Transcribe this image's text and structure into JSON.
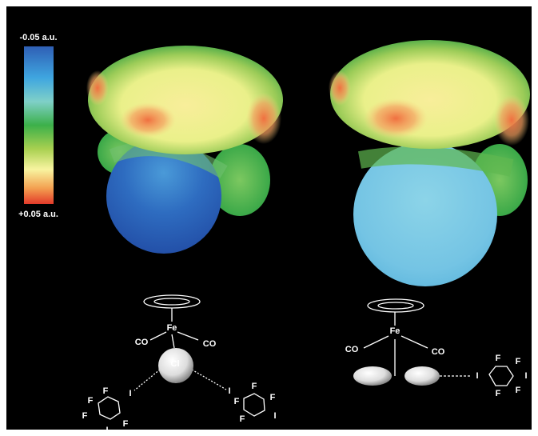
{
  "colorbar": {
    "top_label": "-0.05 a.u.",
    "bottom_label": "+0.05 a.u."
  },
  "left_complex": {
    "metal": "Fe",
    "carbonyls": [
      "CO",
      "CO"
    ],
    "halide": "Cl",
    "donors": [
      {
        "iodine": "I",
        "fluorines": [
          "F",
          "F",
          "F",
          "F"
        ],
        "para": "I"
      },
      {
        "iodine": "I",
        "fluorines": [
          "F",
          "F",
          "F",
          "F"
        ],
        "para": "I"
      }
    ]
  },
  "right_complex": {
    "metal": "Fe",
    "carbonyls": [
      "CO",
      "CO"
    ],
    "donor": {
      "iodine": "I",
      "fluorines": [
        "F",
        "F",
        "F",
        "F"
      ],
      "para": "I"
    }
  }
}
